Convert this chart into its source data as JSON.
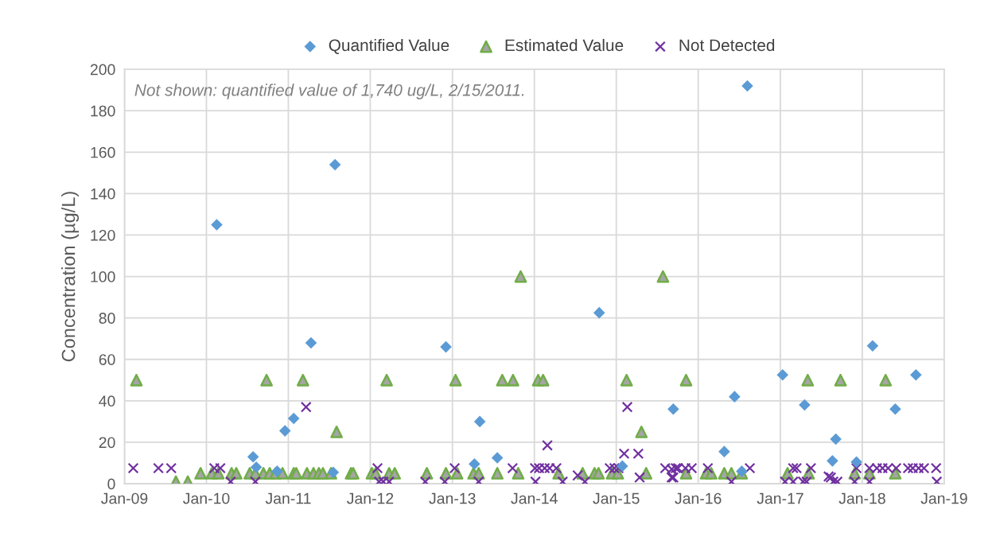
{
  "chart_data": {
    "type": "scatter",
    "ylabel": "Concentration (µg/L)",
    "annotations": [
      "Not shown: quantified value of 1,740 ug/L, 2/15/2011."
    ],
    "xlim": [
      "2009-01-01",
      "2019-01-01"
    ],
    "xticks": [
      {
        "value": "2009-01-01",
        "label": "Jan-09"
      },
      {
        "value": "2010-01-01",
        "label": "Jan-10"
      },
      {
        "value": "2011-01-01",
        "label": "Jan-11"
      },
      {
        "value": "2012-01-01",
        "label": "Jan-12"
      },
      {
        "value": "2013-01-01",
        "label": "Jan-13"
      },
      {
        "value": "2014-01-01",
        "label": "Jan-14"
      },
      {
        "value": "2015-01-01",
        "label": "Jan-15"
      },
      {
        "value": "2016-01-01",
        "label": "Jan-16"
      },
      {
        "value": "2017-01-01",
        "label": "Jan-17"
      },
      {
        "value": "2018-01-01",
        "label": "Jan-18"
      },
      {
        "value": "2019-01-01",
        "label": "Jan-19"
      }
    ],
    "ylim": [
      0,
      200
    ],
    "yticks": [
      0,
      20,
      40,
      60,
      80,
      100,
      120,
      140,
      160,
      180,
      200
    ],
    "grid": true,
    "legend": "top",
    "series": [
      {
        "name": "Quantified Value",
        "color": "#5b9bd5",
        "marker": "diamond",
        "x": [
          "2010-02-16",
          "2010-07-28",
          "2010-08-11",
          "2010-11-12",
          "2010-12-17",
          "2011-01-25",
          "2011-04-12",
          "2011-07-20",
          "2011-07-28",
          "2012-12-03",
          "2013-04-09",
          "2013-05-03",
          "2013-07-20",
          "2014-10-17",
          "2015-01-28",
          "2015-09-12",
          "2016-04-26",
          "2016-06-11",
          "2016-07-13",
          "2016-08-07",
          "2017-01-11",
          "2017-04-19",
          "2017-08-21",
          "2017-09-05",
          "2017-12-06",
          "2018-02-16",
          "2018-05-28",
          "2018-08-28"
        ],
        "values": [
          125,
          13,
          8,
          6,
          25.5,
          31.5,
          68,
          5.5,
          154,
          66,
          9.5,
          30,
          12.5,
          82.5,
          8.5,
          36,
          15.5,
          42,
          6,
          192,
          52.5,
          38,
          11,
          21.5,
          10.5,
          66.5,
          36,
          52.5
        ]
      },
      {
        "name": "Estimated Value",
        "color": "#70ad47",
        "marker": "triangle",
        "x": [
          "2009-02-23",
          "2010-09-26",
          "2011-03-07",
          "2012-03-14",
          "2013-01-15",
          "2013-08-11",
          "2013-09-28",
          "2014-01-18",
          "2014-02-09",
          "2015-02-16",
          "2015-11-08",
          "2017-05-03",
          "2017-09-26",
          "2018-04-15",
          "2013-11-01",
          "2015-07-28",
          "2011-08-04",
          "2015-04-23",
          "2009-08-18",
          "2009-10-10",
          "2009-12-06",
          "2010-01-25",
          "2010-02-23",
          "2010-04-23",
          "2010-05-14",
          "2010-07-13",
          "2010-08-07",
          "2010-09-12",
          "2010-10-10",
          "2010-11-05",
          "2010-12-06",
          "2011-01-25",
          "2011-02-05",
          "2011-03-25",
          "2011-04-23",
          "2011-05-17",
          "2011-06-04",
          "2011-07-10",
          "2011-10-07",
          "2011-10-17",
          "2012-01-08",
          "2012-01-25",
          "2012-03-25",
          "2012-04-19",
          "2012-09-09",
          "2012-12-03",
          "2013-01-22",
          "2013-04-05",
          "2013-04-28",
          "2013-07-20",
          "2013-10-21",
          "2014-04-19",
          "2014-08-04",
          "2014-09-26",
          "2014-10-14",
          "2014-12-13",
          "2015-01-08",
          "2015-05-14",
          "2015-11-08",
          "2016-02-05",
          "2016-02-28",
          "2016-04-26",
          "2016-05-28",
          "2016-07-13",
          "2017-02-02",
          "2017-05-07",
          "2017-11-28",
          "2018-02-02",
          "2018-05-28"
        ],
        "values": [
          50,
          50,
          50,
          50,
          50,
          50,
          50,
          50,
          50,
          50,
          50,
          50,
          50,
          50,
          100,
          100,
          25,
          25,
          1,
          1,
          5,
          5,
          5,
          5,
          5,
          5,
          5,
          5,
          5,
          5,
          5,
          5,
          5,
          5,
          5,
          5,
          5,
          5,
          5,
          5,
          5,
          5,
          5,
          5,
          5,
          5,
          5,
          5,
          5,
          5,
          5,
          5,
          5,
          5,
          5,
          5,
          5,
          5,
          5,
          5,
          5,
          5,
          5,
          5,
          5,
          5,
          5,
          5,
          5
        ]
      },
      {
        "name": "Not Detected",
        "color": "#7030a0",
        "marker": "cross",
        "x": [
          "2009-02-09",
          "2009-06-01",
          "2009-07-28",
          "2010-02-05",
          "2010-03-04",
          "2010-04-19",
          "2010-08-07",
          "2011-03-21",
          "2012-02-02",
          "2012-02-09",
          "2012-02-28",
          "2012-03-25",
          "2012-09-02",
          "2012-11-28",
          "2013-01-11",
          "2013-04-28",
          "2013-09-26",
          "2014-01-04",
          "2014-01-06",
          "2014-01-22",
          "2014-02-16",
          "2014-02-28",
          "2014-03-10",
          "2014-04-09",
          "2014-05-07",
          "2014-07-13",
          "2014-08-14",
          "2014-12-03",
          "2014-12-24",
          "2015-01-11",
          "2015-02-05",
          "2015-02-19",
          "2015-04-09",
          "2015-04-15",
          "2015-08-07",
          "2015-09-05",
          "2015-09-05",
          "2015-09-12",
          "2015-09-23",
          "2015-10-03",
          "2015-11-05",
          "2015-12-03",
          "2016-02-13",
          "2016-05-28",
          "2016-08-18",
          "2017-01-22",
          "2017-02-27",
          "2017-02-27",
          "2017-03-14",
          "2017-04-12",
          "2017-04-28",
          "2017-05-17",
          "2017-08-04",
          "2017-08-14",
          "2017-08-25",
          "2017-09-12",
          "2017-11-28",
          "2017-12-06",
          "2018-02-02",
          "2018-02-02",
          "2018-03-07",
          "2018-04-01",
          "2018-04-26",
          "2018-06-01",
          "2018-07-24",
          "2018-08-14",
          "2018-09-09",
          "2018-10-03",
          "2018-11-26",
          "2018-11-29"
        ],
        "values": [
          7.5,
          7.5,
          7.5,
          7.5,
          7.5,
          1,
          1,
          37,
          7.5,
          1,
          1,
          1,
          1,
          1,
          7.5,
          1,
          7.5,
          7.5,
          1,
          7.5,
          7.5,
          18.5,
          7.5,
          7.5,
          1,
          4,
          1,
          7.5,
          7.5,
          7.5,
          14.5,
          37,
          14.5,
          3,
          7.5,
          7,
          3,
          3,
          7.5,
          7.5,
          7.5,
          7.5,
          7.5,
          1,
          7.5,
          1,
          7.5,
          1,
          7.5,
          1,
          1,
          7.5,
          3.5,
          3,
          1,
          1,
          1,
          7.5,
          7.5,
          1,
          7.5,
          7.5,
          7.5,
          7.5,
          7.5,
          7.5,
          7.5,
          7.5,
          7.5,
          1
        ]
      }
    ]
  }
}
